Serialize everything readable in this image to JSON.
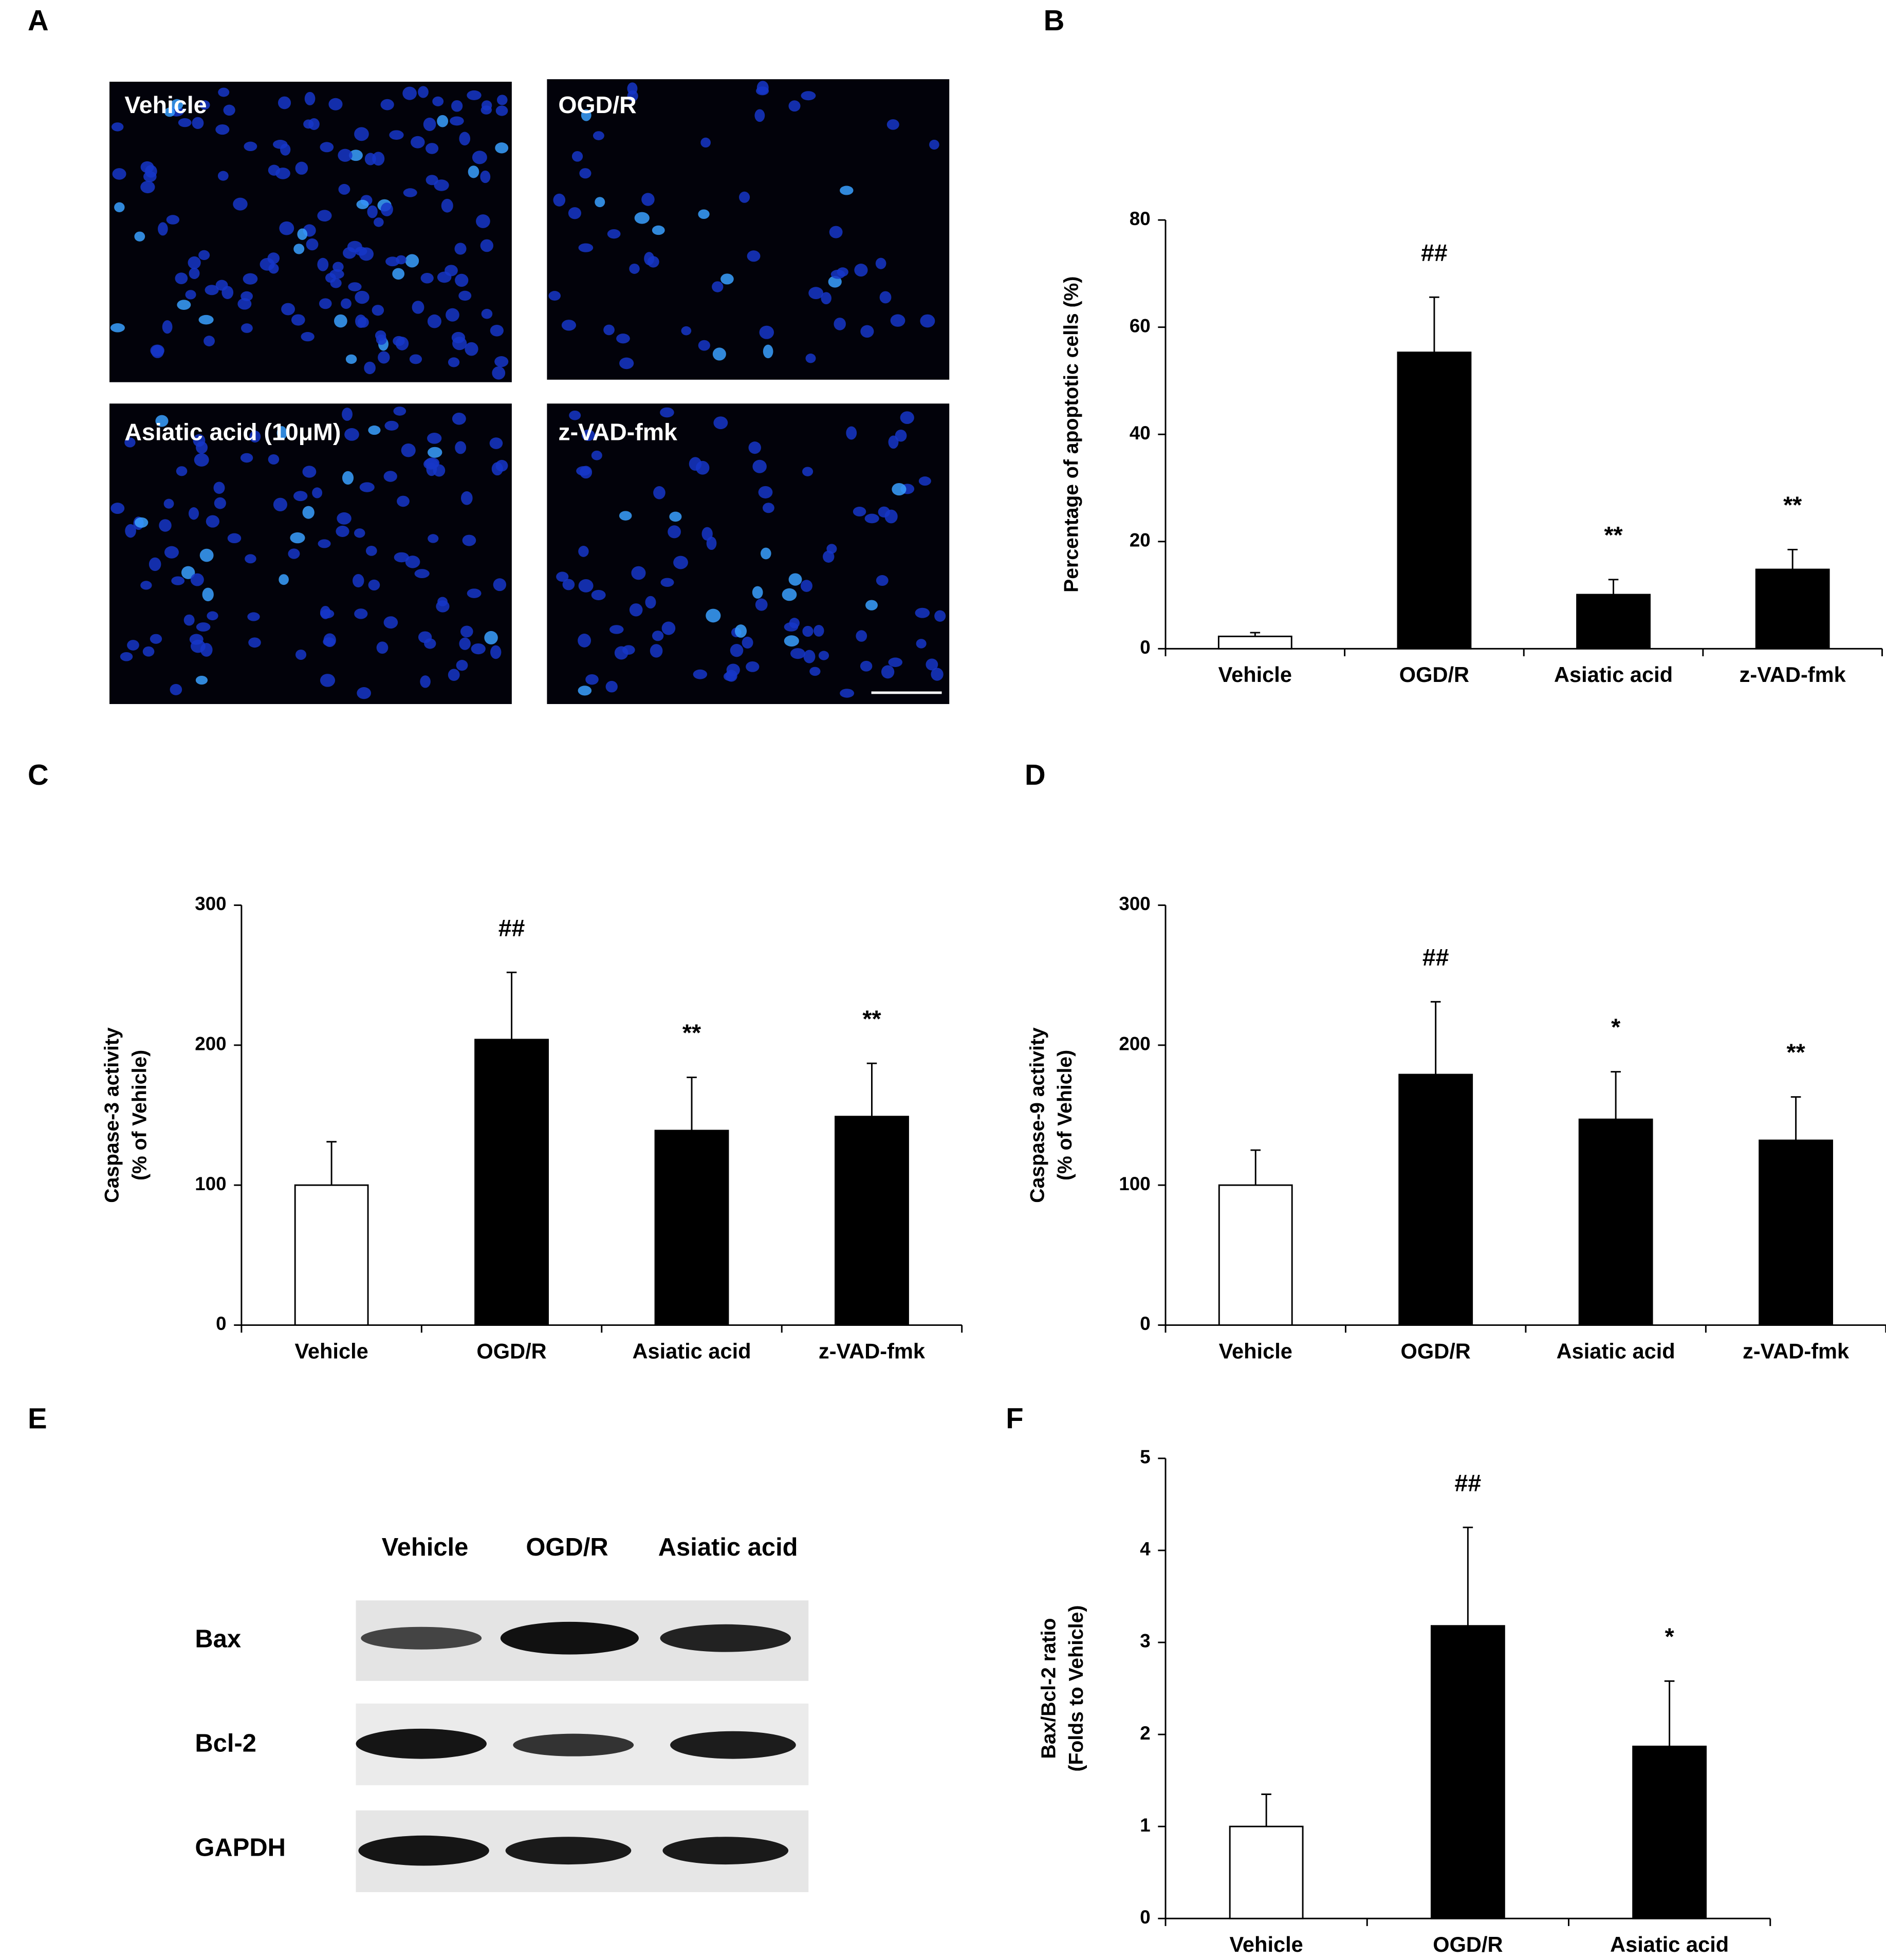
{
  "micrographs": {
    "panel": "A",
    "labels": [
      "Vehicle",
      "OGD/R",
      "Asiatic acid (10μM)",
      "z-VAD-fmk"
    ]
  },
  "blot": {
    "panel": "E",
    "lanes": [
      "Vehicle",
      "OGD/R",
      "Asiatic acid"
    ],
    "rows": [
      "Bax",
      "Bcl-2",
      "GAPDH"
    ]
  },
  "chart_data": [
    {
      "type": "bar",
      "panel": "B",
      "ylabel": [
        "Percentage of apoptotic cells (%)"
      ],
      "categories": [
        "Vehicle",
        "OGD/R",
        "Asiatic acid",
        "z-VAD-fmk"
      ],
      "values": [
        2.3,
        55.3,
        10.1,
        14.8
      ],
      "errors": [
        0.7,
        10.3,
        2.8,
        3.7
      ],
      "colors": [
        "#ffffff",
        "#000000",
        "#000000",
        "#000000"
      ],
      "annotations": [
        null,
        "##",
        "**",
        "**"
      ],
      "ylim": [
        0,
        80
      ],
      "yticks": [
        0,
        20,
        40,
        60,
        80
      ]
    },
    {
      "type": "bar",
      "panel": "C",
      "ylabel": [
        "Caspase-3 activity",
        "(% of Vehicle)"
      ],
      "categories": [
        "Vehicle",
        "OGD/R",
        "Asiatic acid",
        "z-VAD-fmk"
      ],
      "values": [
        100,
        204,
        139,
        149
      ],
      "errors": [
        31,
        48,
        38,
        38
      ],
      "colors": [
        "#ffffff",
        "#000000",
        "#000000",
        "#000000"
      ],
      "annotations": [
        null,
        "##",
        "**",
        "**"
      ],
      "ylim": [
        0,
        300
      ],
      "yticks": [
        0,
        100,
        200,
        300
      ]
    },
    {
      "type": "bar",
      "panel": "D",
      "ylabel": [
        "Caspase-9 activity",
        "(% of Vehicle)"
      ],
      "categories": [
        "Vehicle",
        "OGD/R",
        "Asiatic acid",
        "z-VAD-fmk"
      ],
      "values": [
        100,
        179,
        147,
        132
      ],
      "errors": [
        25,
        52,
        34,
        31
      ],
      "colors": [
        "#ffffff",
        "#000000",
        "#000000",
        "#000000"
      ],
      "annotations": [
        null,
        "##",
        "*",
        "**"
      ],
      "ylim": [
        0,
        300
      ],
      "yticks": [
        0,
        100,
        200,
        300
      ]
    },
    {
      "type": "bar",
      "panel": "F",
      "ylabel": [
        "Bax/Bcl-2 ratio",
        "(Folds to Vehicle)"
      ],
      "categories": [
        "Vehicle",
        "OGD/R",
        "Asiatic acid"
      ],
      "values": [
        1.0,
        3.18,
        1.87
      ],
      "errors": [
        0.35,
        1.07,
        0.71
      ],
      "colors": [
        "#ffffff",
        "#000000",
        "#000000"
      ],
      "annotations": [
        null,
        "##",
        "*"
      ],
      "ylim": [
        0,
        5
      ],
      "yticks": [
        0,
        1,
        2,
        3,
        4,
        5
      ]
    }
  ]
}
